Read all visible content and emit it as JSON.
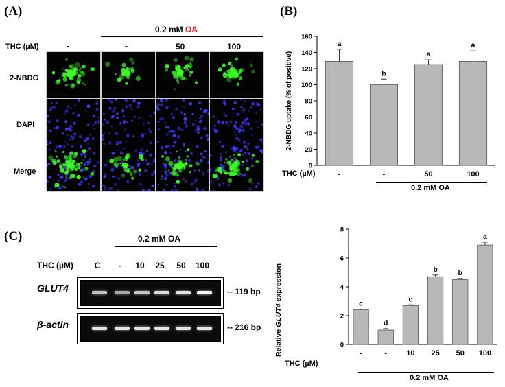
{
  "panel_a": {
    "letter": "(A)",
    "header_conc": "0.2 mM ",
    "header_oa": "OA",
    "oa_color": "#e02020",
    "thc_label": "THC (µM)",
    "col_labels": [
      "-",
      "-",
      "50",
      "100"
    ],
    "row_labels": [
      "2-NBDG",
      "DAPI",
      "Merge"
    ],
    "colors": {
      "green": "#3dff2a",
      "blue": "#3a3aff",
      "background": "#030303"
    }
  },
  "panel_b": {
    "letter": "(B)",
    "thc_label": "THC (µM)",
    "group_label": "0.2 mM OA"
  },
  "panel_c": {
    "letter": "(C)",
    "header": "0.2 mM OA",
    "thc_label": "THC (µM)",
    "lane_labels": [
      "C",
      "-",
      "10",
      "25",
      "50",
      "100"
    ],
    "genes": [
      {
        "name": "GLUT4",
        "size": "-- 119 bp"
      },
      {
        "name": "β-actin",
        "size": "-- 216 bp"
      }
    ],
    "band_intensity": {
      "GLUT4": [
        0.55,
        0.35,
        0.6,
        0.75,
        0.8,
        0.95
      ],
      "beta_actin": [
        0.8,
        0.8,
        0.8,
        0.8,
        0.8,
        0.8
      ]
    }
  },
  "panel_d": {
    "thc_label": "THC (µM)",
    "group_label": "0.2 mM OA",
    "ylabel_pre": "Relative ",
    "ylabel_gene": "GLUT4",
    "ylabel_post": " expression"
  },
  "chart_data": [
    {
      "type": "bar",
      "categories": [
        "-",
        "-",
        "50",
        "100"
      ],
      "values": [
        129,
        100,
        125,
        129
      ],
      "errors": [
        15,
        7,
        6,
        13
      ],
      "letters": [
        "a",
        "b",
        "a",
        "a"
      ],
      "xlabel": "THC (µM)",
      "ylabel": "2-NBDG uptake (% of positive)",
      "ylim": [
        0,
        160
      ],
      "yticks": [
        0,
        20,
        40,
        60,
        80,
        100,
        120,
        140,
        160
      ],
      "bar_color": "#b8b8b8",
      "grid": false
    },
    {
      "type": "bar",
      "categories": [
        "-",
        "-",
        "10",
        "25",
        "50",
        "100"
      ],
      "values": [
        2.4,
        1.0,
        2.7,
        4.7,
        4.5,
        6.9
      ],
      "errors": [
        0.05,
        0.1,
        0.05,
        0.12,
        0.08,
        0.2
      ],
      "letters": [
        "c",
        "d",
        "c",
        "b",
        "b",
        "a"
      ],
      "xlabel": "THC (µM)",
      "ylabel": "Relative GLUT4 expression",
      "ylim": [
        0,
        8
      ],
      "yticks": [
        0,
        2,
        4,
        6,
        8
      ],
      "bar_color": "#b8b8b8",
      "grid": false
    }
  ]
}
